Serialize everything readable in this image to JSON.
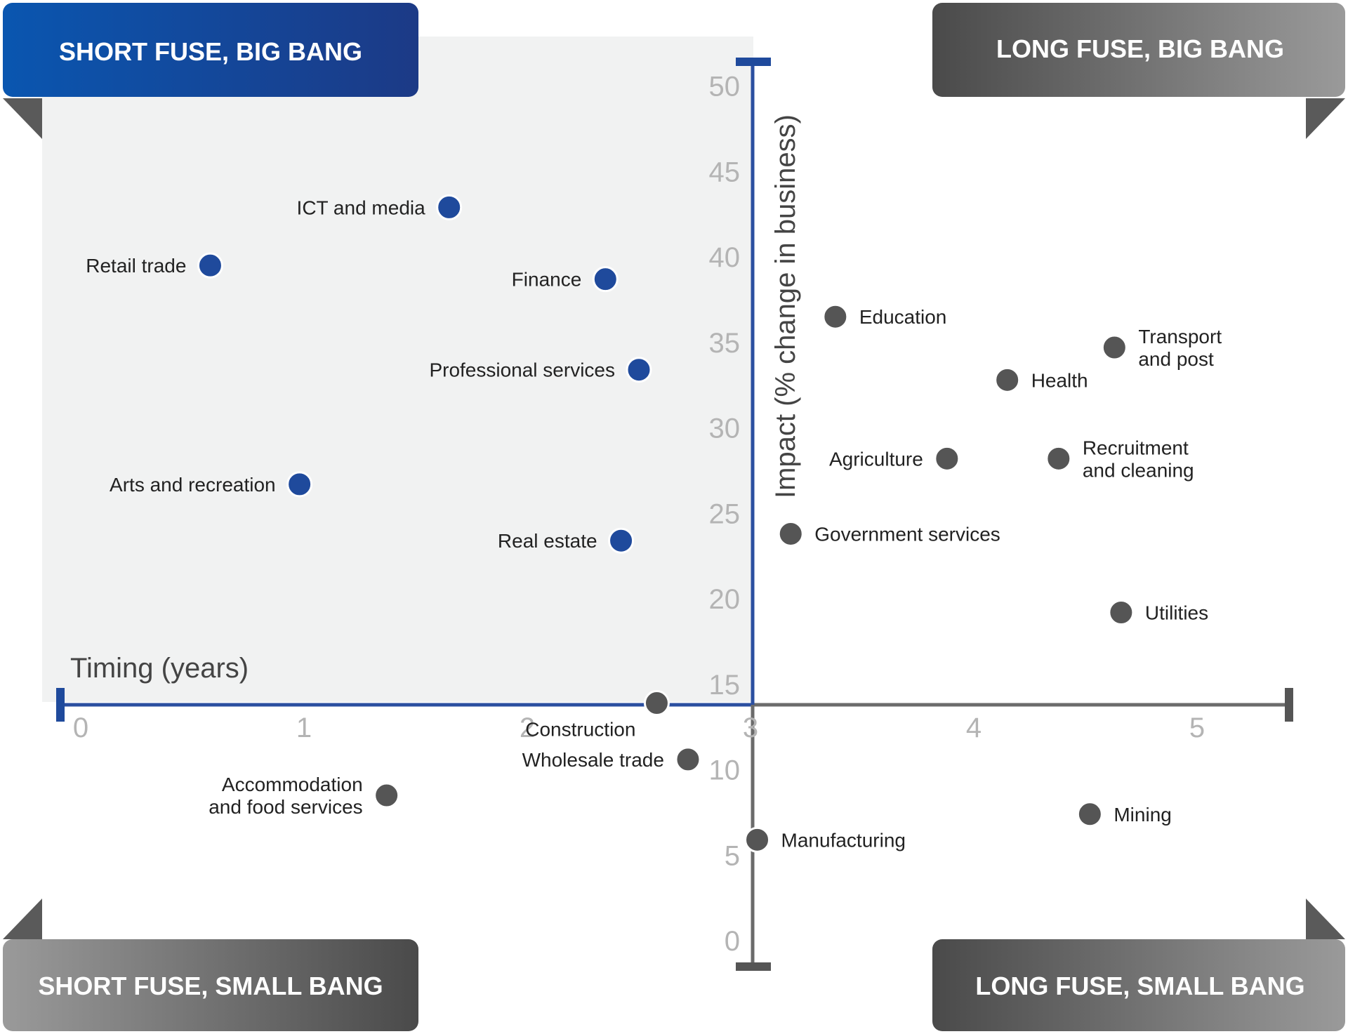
{
  "quadrants": {
    "top_left": "SHORT FUSE, BIG BANG",
    "top_right": "LONG FUSE, BIG BANG",
    "bottom_left": "SHORT FUSE, SMALL BANG",
    "bottom_right": "LONG FUSE, SMALL BANG"
  },
  "colors": {
    "short_fuse_big_bang": "#1f4a9c",
    "other": "#555555",
    "panel": "#f1f2f2",
    "tick": "#b4b4b4"
  },
  "chart_data": {
    "type": "scatter",
    "xlabel": "Timing (years)",
    "ylabel": "Impact (% change in business)",
    "xlim": [
      0,
      5.5
    ],
    "ylim": [
      0,
      51
    ],
    "x_ticks": [
      0,
      1,
      2,
      3,
      4,
      5
    ],
    "y_ticks": [
      0,
      5,
      10,
      15,
      20,
      25,
      30,
      35,
      40,
      45,
      50
    ],
    "points": [
      {
        "label": "ICT and media",
        "x": 1.65,
        "y": 42.9,
        "group": "short_fuse_big_bang"
      },
      {
        "label": "Retail trade",
        "x": 0.58,
        "y": 39.5,
        "group": "short_fuse_big_bang"
      },
      {
        "label": "Finance",
        "x": 2.35,
        "y": 38.7,
        "group": "short_fuse_big_bang"
      },
      {
        "label": "Professional services",
        "x": 2.5,
        "y": 33.4,
        "group": "short_fuse_big_bang"
      },
      {
        "label": "Arts and recreation",
        "x": 0.98,
        "y": 26.7,
        "group": "short_fuse_big_bang"
      },
      {
        "label": "Real estate",
        "x": 2.42,
        "y": 23.4,
        "group": "short_fuse_big_bang"
      },
      {
        "label": "Education",
        "x": 3.38,
        "y": 36.5,
        "group": "other"
      },
      {
        "label": "Transport and post",
        "x": 4.63,
        "y": 34.7,
        "group": "other"
      },
      {
        "label": "Health",
        "x": 4.15,
        "y": 32.8,
        "group": "other"
      },
      {
        "label": "Agriculture",
        "x": 3.88,
        "y": 28.2,
        "group": "other"
      },
      {
        "label": "Recruitment and cleaning",
        "x": 4.38,
        "y": 28.2,
        "group": "other"
      },
      {
        "label": "Government services",
        "x": 3.18,
        "y": 23.8,
        "group": "other"
      },
      {
        "label": "Utilities",
        "x": 4.66,
        "y": 19.2,
        "group": "other"
      },
      {
        "label": "Construction",
        "x": 2.58,
        "y": 13.9,
        "group": "other"
      },
      {
        "label": "Wholesale trade",
        "x": 2.72,
        "y": 10.6,
        "group": "other"
      },
      {
        "label": "Accommodation and food services",
        "x": 1.37,
        "y": 8.5,
        "group": "other"
      },
      {
        "label": "Mining",
        "x": 4.52,
        "y": 7.4,
        "group": "other"
      },
      {
        "label": "Manufacturing",
        "x": 3.03,
        "y": 5.9,
        "group": "other"
      }
    ]
  }
}
